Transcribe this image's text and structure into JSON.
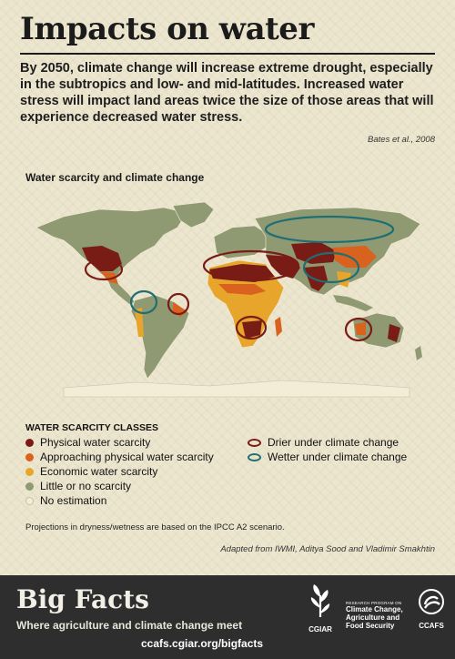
{
  "title": "Impacts on water",
  "lead": "By 2050, climate change will increase extreme drought, especially in the subtropics and low- and mid-latitudes. Increased water stress will impact land areas twice the size of those areas that will experience decreased water stress.",
  "citation": "Bates et al., 2008",
  "map": {
    "title": "Water scarcity and climate change",
    "colors": {
      "ocean": "#ede6cf",
      "land": "#8f9a73",
      "physical": "#7a1c16",
      "approaching": "#d9621f",
      "economic": "#e7a52c",
      "little": "#8f9a73",
      "none": "#f3ecd6",
      "drier": "#7a1c16",
      "wetter": "#1f6e74"
    }
  },
  "legend": {
    "heading": "WATER SCARCITY CLASSES",
    "items": [
      {
        "label": "Physical water scarcity",
        "color": "#7a1c16"
      },
      {
        "label": "Approaching physical water scarcity",
        "color": "#d9621f"
      },
      {
        "label": "Economic water scarcity",
        "color": "#e7a52c"
      },
      {
        "label": "Little or no scarcity",
        "color": "#8f9a73"
      },
      {
        "label": "No estimation",
        "color": "#f3ecd6"
      }
    ],
    "rings": [
      {
        "label": "Drier under climate change",
        "color": "#7a1c16"
      },
      {
        "label": "Wetter under climate change",
        "color": "#1f6e74"
      }
    ]
  },
  "note": "Projections in dryness/wetness are based on the IPCC A2 scenario.",
  "adapted": "Adapted from IWMI, Aditya Sood and Vladimir Smakhtin",
  "footer": {
    "title": "Big Facts",
    "subtitle": "Where agriculture and climate change meet",
    "url": "ccafs.cgiar.org/bigfacts",
    "cgiar": "CGIAR",
    "program_small": "RESEARCH PROGRAM ON",
    "program_l1": "Climate Change,",
    "program_l2": "Agriculture and",
    "program_l3": "Food Security",
    "ccafs": "CCAFS"
  }
}
